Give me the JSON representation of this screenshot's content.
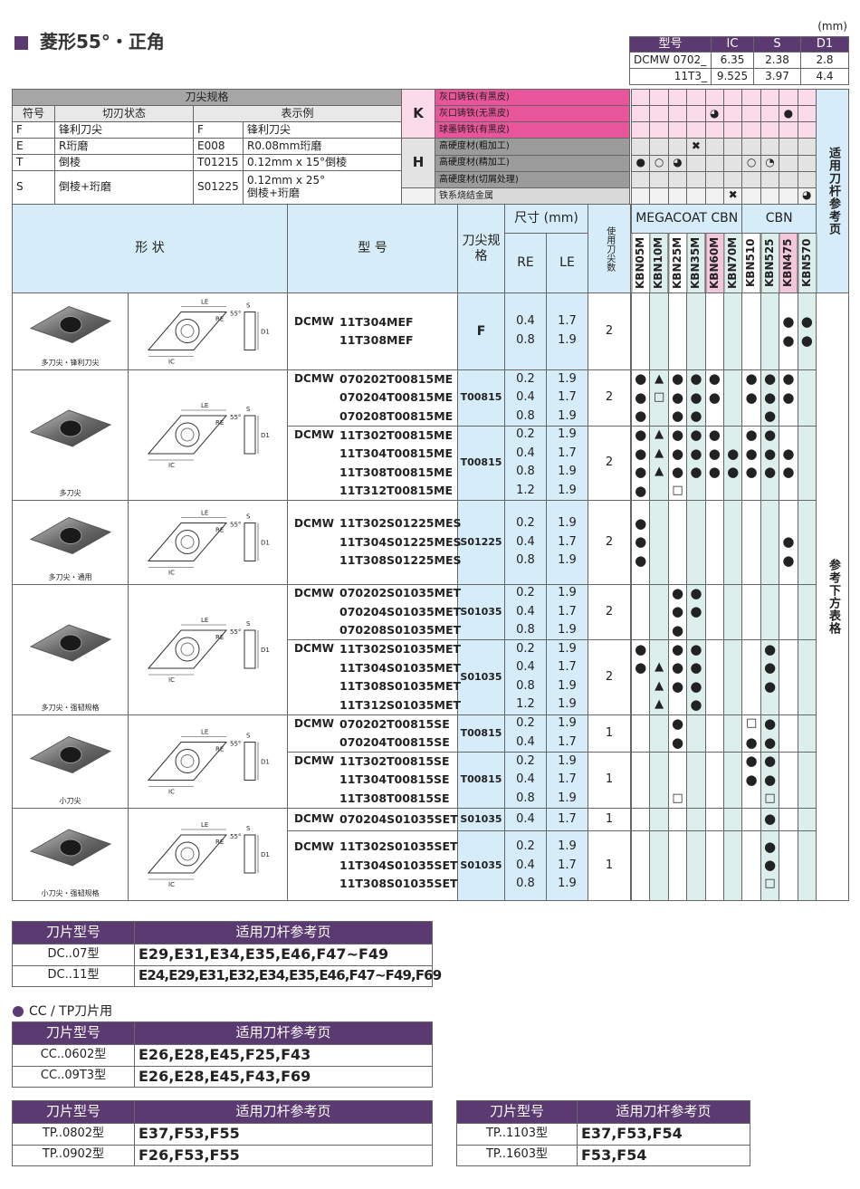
{
  "header": {
    "title": "菱形55°・正角",
    "unit": "(mm)"
  },
  "dimensions": {
    "columns": [
      "型号",
      "IC",
      "S",
      "D1"
    ],
    "rows": [
      [
        "DCMW 0702_",
        6.35,
        2.38,
        2.8
      ],
      [
        "11T3_",
        9.525,
        3.97,
        4.4
      ]
    ]
  },
  "edge_spec": {
    "title": "刀尖规格",
    "columns": [
      "符号",
      "切刃状态",
      "表示例"
    ],
    "rows": [
      {
        "code": "F",
        "state": "锋利刀尖",
        "example": "F",
        "desc": [
          "锋利刀尖"
        ]
      },
      {
        "code": "E",
        "state": "R珩磨",
        "example": "E008",
        "desc": [
          "R0.08mm珩磨"
        ]
      },
      {
        "code": "T",
        "state": "倒棱",
        "example": "T01215",
        "desc": [
          "0.12mm x 15°倒棱"
        ]
      },
      {
        "code": "S",
        "state": "倒棱+珩磨",
        "example": "S01225",
        "desc": [
          "0.12mm x 25°",
          "倒棱+珩磨"
        ]
      }
    ]
  },
  "materials": [
    {
      "group": "K",
      "name": "灰口铸铁(有黑皮)",
      "marks": [
        null,
        null,
        null,
        null,
        null,
        null,
        null,
        null,
        null,
        null
      ]
    },
    {
      "group": "K",
      "name": "灰口铸铁(无黑皮)",
      "marks": [
        null,
        null,
        null,
        null,
        "◕",
        null,
        null,
        null,
        "●",
        null
      ]
    },
    {
      "group": "K",
      "name": "球墨铸铁(有黑皮)",
      "marks": [
        null,
        null,
        null,
        null,
        null,
        null,
        null,
        null,
        null,
        null
      ]
    },
    {
      "group": "H",
      "name": "高硬度材(粗加工)",
      "marks": [
        null,
        null,
        null,
        "✖",
        null,
        null,
        null,
        null,
        null,
        null
      ]
    },
    {
      "group": "H",
      "name": "高硬度材(精加工)",
      "marks": [
        "●",
        "○",
        "◕",
        null,
        null,
        null,
        "○",
        "◔",
        null,
        null
      ]
    },
    {
      "group": "H",
      "name": "高硬度材(切屑处理)",
      "marks": [
        null,
        null,
        null,
        null,
        null,
        null,
        null,
        null,
        null,
        null
      ]
    },
    {
      "group": null,
      "name": "铁系烧结金属",
      "marks": [
        null,
        null,
        null,
        null,
        null,
        "✖",
        null,
        null,
        null,
        "◕"
      ]
    }
  ],
  "holder_ref_label": "适用刀杆参考页",
  "diagram_labels": [
    "LE",
    "RE",
    "55°",
    "S",
    "D1",
    "IC"
  ],
  "main_table": {
    "headers": {
      "shape": "形 状",
      "model": "型 号",
      "edge": "刀尖规格",
      "size": "尺寸 (mm)",
      "re": "RE",
      "le": "LE",
      "corners": "使用刀尖数",
      "megacoat": "MEGACOAT CBN",
      "cbn": "CBN"
    },
    "grades": [
      "KBN05M",
      "KBN10M",
      "KBN25M",
      "KBN35M",
      "KBN60M",
      "KBN70M",
      "KBN510",
      "KBN525",
      "KBN475",
      "KBN570"
    ],
    "see_below": "参考下方表格",
    "groups": [
      {
        "shape_label": "多刀尖・锋利刀尖",
        "blocks": [
          {
            "prefix": "DCMW",
            "edge": "F",
            "corners": 2,
            "rows": [
              {
                "model": "11T304MEF",
                "re": 0.4,
                "le": 1.7,
                "marks": [
                  null,
                  null,
                  null,
                  null,
                  null,
                  null,
                  null,
                  null,
                  "●",
                  "●"
                ]
              },
              {
                "model": "11T308MEF",
                "re": 0.8,
                "le": 1.9,
                "marks": [
                  null,
                  null,
                  null,
                  null,
                  null,
                  null,
                  null,
                  null,
                  "●",
                  "●"
                ]
              }
            ]
          }
        ]
      },
      {
        "shape_label": "多刀尖",
        "blocks": [
          {
            "prefix": "DCMW",
            "edge": "T00815",
            "corners": 2,
            "rows": [
              {
                "model": "070202T00815ME",
                "re": 0.2,
                "le": 1.9,
                "marks": [
                  "●",
                  "▲",
                  "●",
                  "●",
                  "●",
                  null,
                  "●",
                  "●",
                  "●",
                  null
                ]
              },
              {
                "model": "070204T00815ME",
                "re": 0.4,
                "le": 1.7,
                "marks": [
                  "●",
                  "□",
                  "●",
                  "●",
                  "●",
                  null,
                  "●",
                  "●",
                  "●",
                  null
                ]
              },
              {
                "model": "070208T00815ME",
                "re": 0.8,
                "le": 1.9,
                "marks": [
                  "●",
                  null,
                  "●",
                  "●",
                  null,
                  null,
                  null,
                  "●",
                  null,
                  null
                ]
              }
            ]
          },
          {
            "prefix": "DCMW",
            "edge": "T00815",
            "corners": 2,
            "rows": [
              {
                "model": "11T302T00815ME",
                "re": 0.2,
                "le": 1.9,
                "marks": [
                  "●",
                  "▲",
                  "●",
                  "●",
                  "●",
                  null,
                  "●",
                  "●",
                  null,
                  null
                ]
              },
              {
                "model": "11T304T00815ME",
                "re": 0.4,
                "le": 1.7,
                "marks": [
                  "●",
                  "▲",
                  "●",
                  "●",
                  "●",
                  "●",
                  "●",
                  "●",
                  "●",
                  null
                ]
              },
              {
                "model": "11T308T00815ME",
                "re": 0.8,
                "le": 1.9,
                "marks": [
                  "●",
                  "▲",
                  "●",
                  "●",
                  "●",
                  "●",
                  "●",
                  "●",
                  "●",
                  null
                ]
              },
              {
                "model": "11T312T00815ME",
                "re": 1.2,
                "le": 1.9,
                "marks": [
                  "●",
                  null,
                  "□",
                  null,
                  null,
                  null,
                  null,
                  null,
                  null,
                  null
                ]
              }
            ]
          }
        ]
      },
      {
        "shape_label": "多刀尖・通用",
        "blocks": [
          {
            "prefix": "DCMW",
            "edge": "S01225",
            "corners": 2,
            "rows": [
              {
                "model": "11T302S01225MES",
                "re": 0.2,
                "le": 1.9,
                "marks": [
                  "●",
                  null,
                  null,
                  null,
                  null,
                  null,
                  null,
                  null,
                  null,
                  null
                ]
              },
              {
                "model": "11T304S01225MES",
                "re": 0.4,
                "le": 1.7,
                "marks": [
                  "●",
                  null,
                  null,
                  null,
                  null,
                  null,
                  null,
                  null,
                  "●",
                  null
                ]
              },
              {
                "model": "11T308S01225MES",
                "re": 0.8,
                "le": 1.9,
                "marks": [
                  "●",
                  null,
                  null,
                  null,
                  null,
                  null,
                  null,
                  null,
                  "●",
                  null
                ]
              }
            ]
          }
        ]
      },
      {
        "shape_label": "多刀尖・强韧规格",
        "blocks": [
          {
            "prefix": "DCMW",
            "edge": "S01035",
            "corners": 2,
            "rows": [
              {
                "model": "070202S01035MET",
                "re": 0.2,
                "le": 1.9,
                "marks": [
                  null,
                  null,
                  "●",
                  "●",
                  null,
                  null,
                  null,
                  null,
                  null,
                  null
                ]
              },
              {
                "model": "070204S01035MET",
                "re": 0.4,
                "le": 1.7,
                "marks": [
                  null,
                  null,
                  "●",
                  "●",
                  null,
                  null,
                  null,
                  null,
                  null,
                  null
                ]
              },
              {
                "model": "070208S01035MET",
                "re": 0.8,
                "le": 1.9,
                "marks": [
                  null,
                  null,
                  "●",
                  null,
                  null,
                  null,
                  null,
                  null,
                  null,
                  null
                ]
              }
            ]
          },
          {
            "prefix": "DCMW",
            "edge": "S01035",
            "corners": 2,
            "rows": [
              {
                "model": "11T302S01035MET",
                "re": 0.2,
                "le": 1.9,
                "marks": [
                  "●",
                  null,
                  "●",
                  "●",
                  null,
                  null,
                  null,
                  "●",
                  null,
                  null
                ]
              },
              {
                "model": "11T304S01035MET",
                "re": 0.4,
                "le": 1.7,
                "marks": [
                  "●",
                  "▲",
                  "●",
                  "●",
                  null,
                  null,
                  null,
                  "●",
                  null,
                  null
                ]
              },
              {
                "model": "11T308S01035MET",
                "re": 0.8,
                "le": 1.9,
                "marks": [
                  null,
                  "▲",
                  "●",
                  "●",
                  null,
                  null,
                  null,
                  "●",
                  null,
                  null
                ]
              },
              {
                "model": "11T312S01035MET",
                "re": 1.2,
                "le": 1.9,
                "marks": [
                  null,
                  "▲",
                  null,
                  "●",
                  null,
                  null,
                  null,
                  null,
                  null,
                  null
                ]
              }
            ]
          }
        ]
      },
      {
        "shape_label": "小刀尖",
        "blocks": [
          {
            "prefix": "DCMW",
            "edge": "T00815",
            "corners": 1,
            "rows": [
              {
                "model": "070202T00815SE",
                "re": 0.2,
                "le": 1.9,
                "marks": [
                  null,
                  null,
                  "●",
                  null,
                  null,
                  null,
                  "□",
                  "●",
                  null,
                  null
                ]
              },
              {
                "model": "070204T00815SE",
                "re": 0.4,
                "le": 1.7,
                "marks": [
                  null,
                  null,
                  "●",
                  null,
                  null,
                  null,
                  "●",
                  "●",
                  null,
                  null
                ]
              }
            ]
          },
          {
            "prefix": "DCMW",
            "edge": "T00815",
            "corners": 1,
            "rows": [
              {
                "model": "11T302T00815SE",
                "re": 0.2,
                "le": 1.9,
                "marks": [
                  null,
                  null,
                  null,
                  null,
                  null,
                  null,
                  "●",
                  "●",
                  null,
                  null
                ]
              },
              {
                "model": "11T304T00815SE",
                "re": 0.4,
                "le": 1.7,
                "marks": [
                  null,
                  null,
                  null,
                  null,
                  null,
                  null,
                  "●",
                  "●",
                  null,
                  null
                ]
              },
              {
                "model": "11T308T00815SE",
                "re": 0.8,
                "le": 1.9,
                "marks": [
                  null,
                  null,
                  "□",
                  null,
                  null,
                  null,
                  null,
                  "□",
                  null,
                  null
                ]
              }
            ]
          }
        ]
      },
      {
        "shape_label": "小刀尖・强韧规格",
        "blocks": [
          {
            "prefix": "DCMW",
            "edge": "S01035",
            "corners": 1,
            "rows": [
              {
                "model": "070204S01035SET",
                "re": 0.4,
                "le": 1.7,
                "marks": [
                  null,
                  null,
                  null,
                  null,
                  null,
                  null,
                  null,
                  "●",
                  null,
                  null
                ]
              }
            ]
          },
          {
            "prefix": "DCMW",
            "edge": "S01035",
            "corners": 1,
            "rows": [
              {
                "model": "11T302S01035SET",
                "re": 0.2,
                "le": 1.9,
                "marks": [
                  null,
                  null,
                  null,
                  null,
                  null,
                  null,
                  null,
                  "●",
                  null,
                  null
                ]
              },
              {
                "model": "11T304S01035SET",
                "re": 0.4,
                "le": 1.7,
                "marks": [
                  null,
                  null,
                  null,
                  null,
                  null,
                  null,
                  null,
                  "●",
                  null,
                  null
                ]
              },
              {
                "model": "11T308S01035SET",
                "re": 0.8,
                "le": 1.9,
                "marks": [
                  null,
                  null,
                  null,
                  null,
                  null,
                  null,
                  null,
                  "□",
                  null,
                  null
                ]
              }
            ]
          }
        ]
      }
    ]
  },
  "cc_tp_title": "CC / TP刀片用",
  "holder_tables": [
    {
      "header": [
        "刀片型号",
        "适用刀杆参考页"
      ],
      "rows": [
        [
          "DC..07型",
          "E29,E31,E34,E35,E46,F47~F49"
        ],
        [
          "DC..11型",
          "E24,E29,E31,E32,E34,E35,E46,F47~F49,F69"
        ]
      ]
    },
    {
      "header": [
        "刀片型号",
        "适用刀杆参考页"
      ],
      "rows": [
        [
          "CC..0602型",
          "E26,E28,E45,F25,F43"
        ],
        [
          "CC..09T3型",
          "E26,E28,E45,F43,F69"
        ]
      ]
    },
    {
      "header": [
        "刀片型号",
        "适用刀杆参考页"
      ],
      "rows": [
        [
          "TP..0802型",
          "E37,F53,F55"
        ],
        [
          "TP..0902型",
          "F26,F53,F55"
        ]
      ]
    },
    {
      "header": [
        "刀片型号",
        "适用刀杆参考页"
      ],
      "rows": [
        [
          "TP..1103型",
          "E37,F53,F54"
        ],
        [
          "TP..1603型",
          "F53,F54"
        ]
      ]
    }
  ]
}
